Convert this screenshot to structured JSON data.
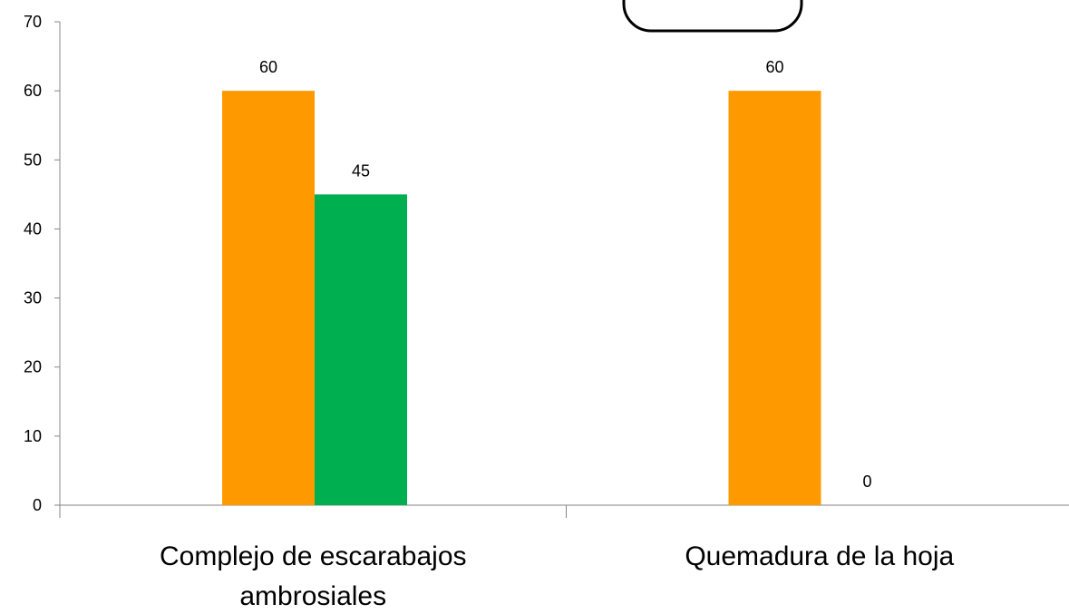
{
  "chart_data": {
    "type": "bar",
    "categories": [
      [
        "Complejo de escarabajos",
        "ambrosiales"
      ],
      [
        "Quemadura de la hoja"
      ]
    ],
    "series": [
      {
        "color": "#ff9900",
        "values": [
          60,
          60
        ]
      },
      {
        "color": "#00b050",
        "values": [
          45,
          0
        ]
      }
    ],
    "data_labels": [
      [
        "60",
        "60"
      ],
      [
        "45",
        "0"
      ]
    ],
    "ylim": [
      0,
      70
    ],
    "yticks": [
      0,
      10,
      20,
      30,
      40,
      50,
      60,
      70
    ],
    "grid": false,
    "legend": "none"
  }
}
